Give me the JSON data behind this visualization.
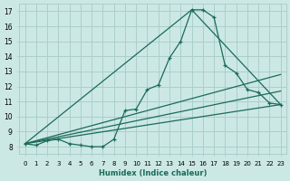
{
  "xlabel": "Humidex (Indice chaleur)",
  "background_color": "#cce8e5",
  "grid_color": "#aacfcc",
  "line_color": "#1a6b5a",
  "xlim": [
    -0.5,
    23.5
  ],
  "ylim": [
    7.5,
    17.5
  ],
  "xticks": [
    0,
    1,
    2,
    3,
    4,
    5,
    6,
    7,
    8,
    9,
    10,
    11,
    12,
    13,
    14,
    15,
    16,
    17,
    18,
    19,
    20,
    21,
    22,
    23
  ],
  "yticks": [
    8,
    9,
    10,
    11,
    12,
    13,
    14,
    15,
    16,
    17
  ],
  "curve_x": [
    0,
    1,
    2,
    3,
    4,
    5,
    6,
    7,
    8,
    9,
    10,
    11,
    12,
    13,
    14,
    15,
    16,
    17,
    18,
    19,
    20,
    21,
    22,
    23
  ],
  "curve_y": [
    8.2,
    8.1,
    8.4,
    8.5,
    8.2,
    8.1,
    8.0,
    8.0,
    8.5,
    10.4,
    10.5,
    11.8,
    12.1,
    13.9,
    15.0,
    17.1,
    17.1,
    16.6,
    13.4,
    12.9,
    11.8,
    11.6,
    10.9,
    10.8
  ],
  "tri_peak_x": 15,
  "tri_peak_y": 17.1,
  "tri_start_x": 0,
  "tri_start_y": 8.2,
  "tri_end_x": 23,
  "tri_end_y": 10.8,
  "diag1_end_y": 12.8,
  "diag2_end_y": 11.7
}
